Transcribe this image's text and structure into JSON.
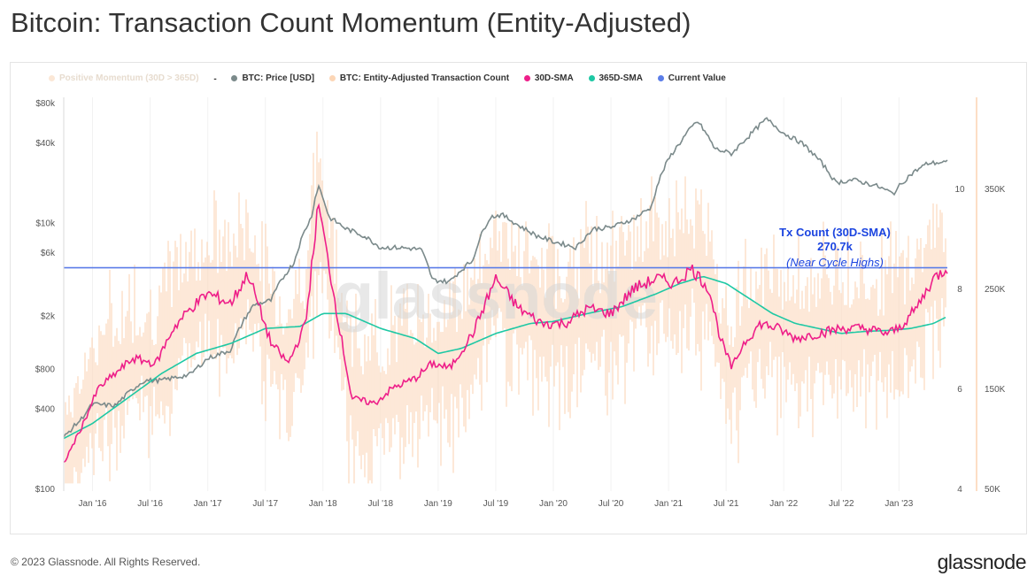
{
  "title": "Bitcoin: Transaction Count Momentum (Entity-Adjusted)",
  "legend": {
    "positive_momentum": "Positive Momentum (30D > 365D)",
    "separator": "-",
    "price": "BTC: Price [USD]",
    "tx_count": "BTC: Entity-Adjusted Transaction Count",
    "sma30": "30D-SMA",
    "sma365": "365D-SMA",
    "current": "Current Value"
  },
  "colors": {
    "price": "#7b8a8b",
    "tx_count": "#fcd9bd",
    "sma30": "#ee1f8a",
    "sma365": "#1ec8a4",
    "current": "#5b7de8",
    "positive_momentum": "#fde6d4"
  },
  "watermark": "glassnode",
  "annotation": {
    "line1": "Tx Count (30D-SMA)",
    "line2": "270.7k",
    "line3": "(Near Cycle Highs)"
  },
  "footer": "© 2023 Glassnode. All Rights Reserved.",
  "brand": "glassnode",
  "chart_data": {
    "type": "line",
    "x_ticks": [
      "Jan '16",
      "Jul '16",
      "Jan '17",
      "Jul '17",
      "Jan '18",
      "Jul '18",
      "Jan '19",
      "Jul '19",
      "Jan '20",
      "Jul '20",
      "Jan '21",
      "Jul '21",
      "Jan '22",
      "Jul '22",
      "Jan '23"
    ],
    "left_axis": {
      "label": "",
      "scale": "log",
      "ticks": [
        "$100",
        "$400",
        "$800",
        "$2k",
        "$6k",
        "$10k",
        "$40k",
        "$80k"
      ],
      "tick_values": [
        100,
        400,
        800,
        2000,
        6000,
        10000,
        40000,
        80000
      ]
    },
    "mid_axis": {
      "ticks": [
        "4",
        "6",
        "8",
        "10"
      ],
      "tick_values": [
        4,
        6,
        8,
        10
      ]
    },
    "right_axis": {
      "ticks": [
        "50K",
        "150K",
        "250K",
        "350K"
      ],
      "tick_values": [
        50000,
        150000,
        250000,
        350000
      ]
    },
    "x_range": [
      2015.75,
      2023.42
    ],
    "series": [
      {
        "name": "BTC: Price [USD]",
        "axis": "left",
        "x": [
          2015.75,
          2015.9,
          2016.0,
          2016.2,
          2016.45,
          2016.6,
          2016.85,
          2017.0,
          2017.2,
          2017.4,
          2017.55,
          2017.75,
          2017.9,
          2017.96,
          2018.05,
          2018.2,
          2018.35,
          2018.5,
          2018.65,
          2018.85,
          2018.95,
          2019.1,
          2019.3,
          2019.45,
          2019.55,
          2019.7,
          2019.85,
          2020.0,
          2020.2,
          2020.35,
          2020.5,
          2020.7,
          2020.85,
          2021.0,
          2021.1,
          2021.25,
          2021.4,
          2021.55,
          2021.7,
          2021.85,
          2022.0,
          2022.15,
          2022.3,
          2022.45,
          2022.6,
          2022.8,
          2022.95,
          2023.1,
          2023.25,
          2023.42
        ],
        "values": [
          240,
          330,
          430,
          420,
          650,
          650,
          720,
          950,
          1100,
          2400,
          2600,
          5000,
          11000,
          19000,
          11000,
          9000,
          8000,
          6500,
          6500,
          6300,
          3700,
          3600,
          5200,
          11000,
          11500,
          9500,
          8000,
          7200,
          6500,
          9000,
          9200,
          10700,
          13000,
          30000,
          40000,
          58000,
          36000,
          33000,
          45000,
          60000,
          47000,
          40000,
          30000,
          20000,
          21000,
          19000,
          16500,
          23000,
          28000,
          28500
        ]
      },
      {
        "name": "30D-SMA",
        "axis": "right",
        "x": [
          2015.75,
          2015.9,
          2016.05,
          2016.2,
          2016.35,
          2016.55,
          2016.7,
          2016.85,
          2017.0,
          2017.2,
          2017.35,
          2017.55,
          2017.7,
          2017.85,
          2017.96,
          2018.1,
          2018.25,
          2018.45,
          2018.6,
          2018.8,
          2018.95,
          2019.1,
          2019.3,
          2019.5,
          2019.7,
          2019.9,
          2020.1,
          2020.3,
          2020.5,
          2020.7,
          2020.9,
          2021.05,
          2021.2,
          2021.35,
          2021.45,
          2021.55,
          2021.65,
          2021.8,
          2021.95,
          2022.1,
          2022.3,
          2022.5,
          2022.7,
          2022.9,
          2023.0,
          2023.15,
          2023.3,
          2023.42
        ],
        "values": [
          75000,
          110000,
          150000,
          165000,
          180000,
          175000,
          210000,
          230000,
          245000,
          235000,
          265000,
          195000,
          175000,
          215000,
          335000,
          240000,
          140000,
          135000,
          150000,
          160000,
          175000,
          170000,
          205000,
          260000,
          230000,
          215000,
          215000,
          230000,
          225000,
          250000,
          260000,
          255000,
          270000,
          250000,
          200000,
          170000,
          195000,
          215000,
          210000,
          200000,
          205000,
          210000,
          210000,
          205000,
          210000,
          230000,
          260000,
          270700
        ]
      },
      {
        "name": "365D-SMA",
        "axis": "right",
        "x": [
          2015.75,
          2016.0,
          2016.3,
          2016.6,
          2016.9,
          2017.2,
          2017.5,
          2017.8,
          2018.0,
          2018.2,
          2018.5,
          2018.8,
          2019.0,
          2019.2,
          2019.5,
          2019.8,
          2020.0,
          2020.3,
          2020.6,
          2020.9,
          2021.1,
          2021.3,
          2021.5,
          2021.7,
          2021.9,
          2022.1,
          2022.3,
          2022.5,
          2022.7,
          2022.9,
          2023.1,
          2023.3,
          2023.42
        ],
        "values": [
          100000,
          115000,
          140000,
          165000,
          185000,
          195000,
          210000,
          212000,
          225000,
          225000,
          210000,
          200000,
          185000,
          190000,
          205000,
          215000,
          217000,
          225000,
          232000,
          245000,
          255000,
          262000,
          255000,
          240000,
          225000,
          215000,
          210000,
          205000,
          207000,
          208000,
          210000,
          215000,
          222000
        ]
      },
      {
        "name": "Current Value",
        "axis": "right",
        "x": [
          2015.75,
          2023.42
        ],
        "values": [
          270700,
          270700
        ]
      }
    ]
  }
}
